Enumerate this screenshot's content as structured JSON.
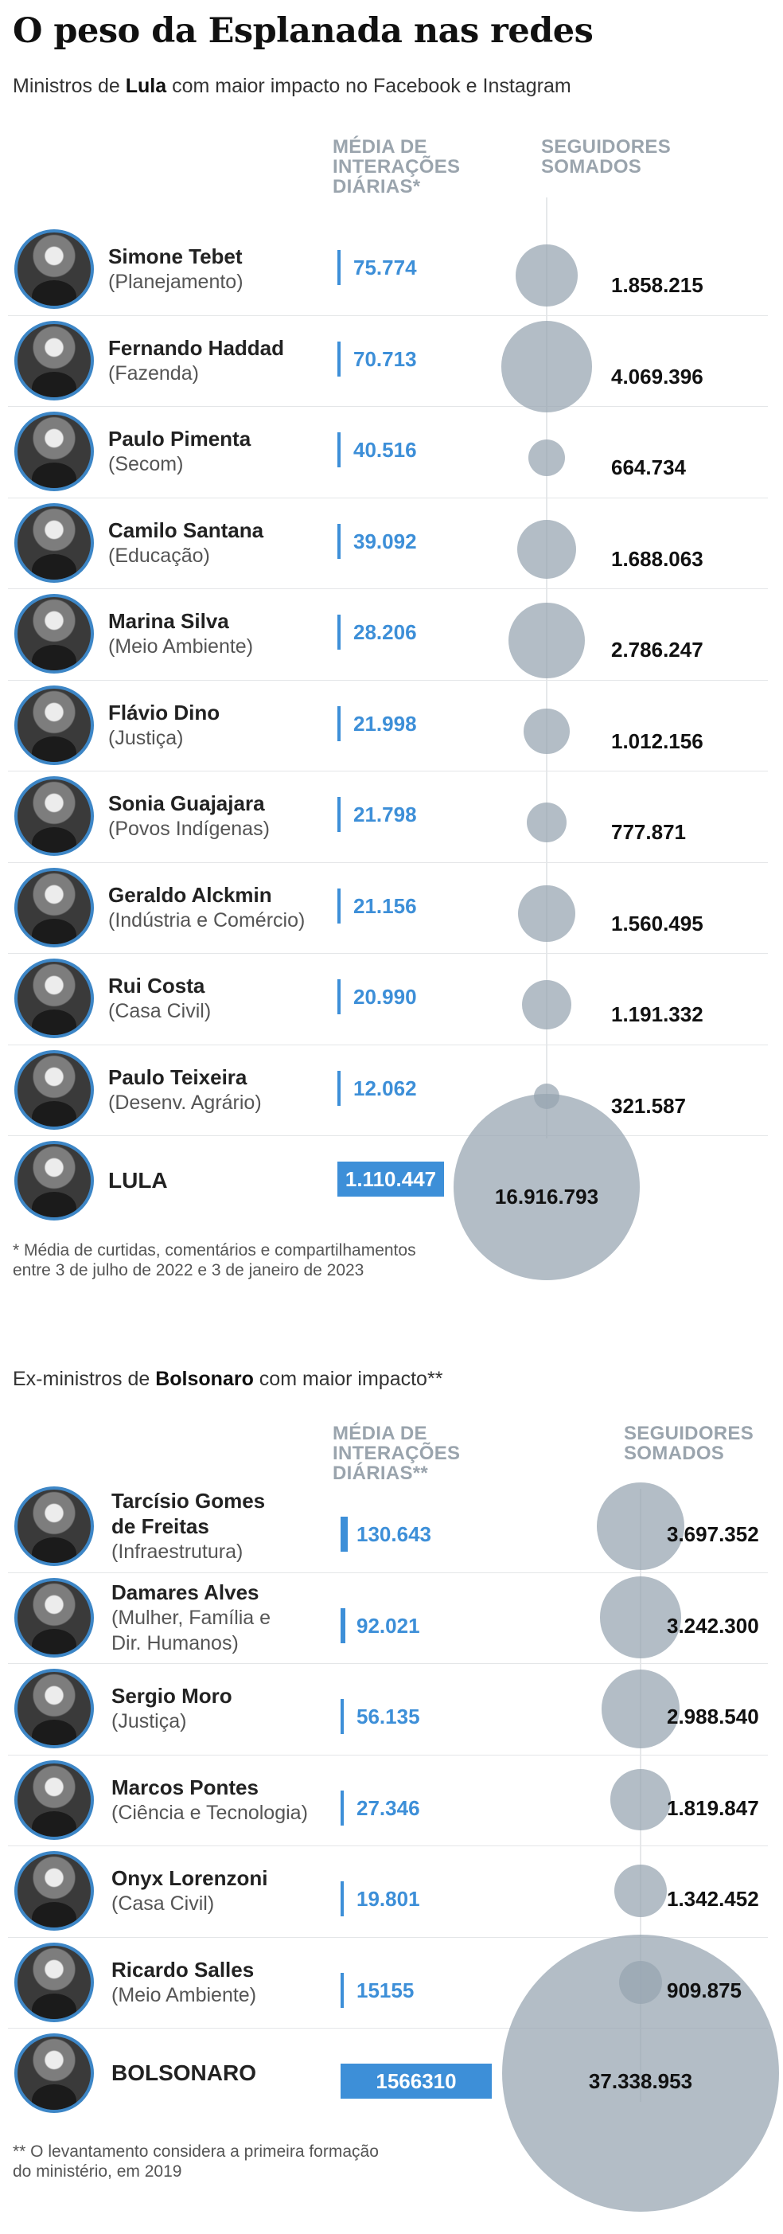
{
  "title": "O peso da Esplanada nas redes",
  "lula_section": {
    "subtitle_prefix": "Ministros de ",
    "subtitle_bold": "Lula",
    "subtitle_suffix": " com maior impacto no Facebook e Instagram",
    "col_interactions": "MÉDIA DE\nINTERAÇÕES\nDIÁRIAS*",
    "col_followers": "SEGUIDORES\nSOMADOS",
    "footnote": "* Média de curtidas, comentários e compartilhamentos\nentre 3 de julho de 2022 e 3 de janeiro de 2023"
  },
  "bolsonaro_section": {
    "subtitle_prefix": "Ex-ministros de ",
    "subtitle_bold": "Bolsonaro",
    "subtitle_suffix": " com maior impacto**",
    "col_interactions": "MÉDIA DE\nINTERAÇÕES\nDIÁRIAS**",
    "col_followers": "SEGUIDORES\nSOMADOS",
    "footnote": "** O levantamento considera a primeira formação\ndo ministério, em 2019"
  },
  "colors": {
    "accent_blue": "#3d8fd8",
    "bubble_gray": "#96a4b0",
    "header_gray": "#9aa4ad"
  },
  "chart_data": [
    {
      "type": "table",
      "title": "O peso da Esplanada nas redes",
      "subtitle": "Ministros de Lula com maior impacto no Facebook e Instagram",
      "columns": [
        "MÉDIA DE INTERAÇÕES DIÁRIAS*",
        "SEGUIDORES SOMADOS"
      ],
      "rows": [
        {
          "name": "Simone Tebet",
          "ministry": "(Planejamento)",
          "interactions": 75774,
          "interactions_label": "75.774",
          "followers": 1858215,
          "followers_label": "1.858.215"
        },
        {
          "name": "Fernando Haddad",
          "ministry": "(Fazenda)",
          "interactions": 70713,
          "interactions_label": "70.713",
          "followers": 4069396,
          "followers_label": "4.069.396"
        },
        {
          "name": "Paulo Pimenta",
          "ministry": "(Secom)",
          "interactions": 40516,
          "interactions_label": "40.516",
          "followers": 664734,
          "followers_label": "664.734"
        },
        {
          "name": "Camilo Santana",
          "ministry": "(Educação)",
          "interactions": 39092,
          "interactions_label": "39.092",
          "followers": 1688063,
          "followers_label": "1.688.063"
        },
        {
          "name": "Marina Silva",
          "ministry": "(Meio Ambiente)",
          "interactions": 28206,
          "interactions_label": "28.206",
          "followers": 2786247,
          "followers_label": "2.786.247"
        },
        {
          "name": "Flávio Dino",
          "ministry": "(Justiça)",
          "interactions": 21998,
          "interactions_label": "21.998",
          "followers": 1012156,
          "followers_label": "1.012.156"
        },
        {
          "name": "Sonia Guajajara",
          "ministry": "(Povos Indígenas)",
          "interactions": 21798,
          "interactions_label": "21.798",
          "followers": 777871,
          "followers_label": "777.871"
        },
        {
          "name": "Geraldo Alckmin",
          "ministry": "(Indústria e Comércio)",
          "interactions": 21156,
          "interactions_label": "21.156",
          "followers": 1560495,
          "followers_label": "1.560.495"
        },
        {
          "name": "Rui Costa",
          "ministry": "(Casa Civil)",
          "interactions": 20990,
          "interactions_label": "20.990",
          "followers": 1191332,
          "followers_label": "1.191.332"
        },
        {
          "name": "Paulo Teixeira",
          "ministry": "(Desenv. Agrário)",
          "interactions": 12062,
          "interactions_label": "12.062",
          "followers": 321587,
          "followers_label": "321.587"
        },
        {
          "name": "LULA",
          "ministry": "",
          "interactions": 1110447,
          "interactions_label": "1.110.447",
          "followers": 16916793,
          "followers_label": "16.916.793",
          "highlight": true
        }
      ]
    },
    {
      "type": "table",
      "subtitle": "Ex-ministros de Bolsonaro com maior impacto**",
      "columns": [
        "MÉDIA DE INTERAÇÕES DIÁRIAS**",
        "SEGUIDORES SOMADOS"
      ],
      "rows": [
        {
          "name": "Tarcísio Gomes\nde Freitas",
          "ministry": "(Infraestrutura)",
          "interactions": 130643,
          "interactions_label": "130.643",
          "followers": 3697352,
          "followers_label": "3.697.352"
        },
        {
          "name": "Damares Alves",
          "ministry": "(Mulher, Família e\nDir. Humanos)",
          "interactions": 92021,
          "interactions_label": "92.021",
          "followers": 3242300,
          "followers_label": "3.242.300"
        },
        {
          "name": "Sergio Moro",
          "ministry": "(Justiça)",
          "interactions": 56135,
          "interactions_label": "56.135",
          "followers": 2988540,
          "followers_label": "2.988.540"
        },
        {
          "name": "Marcos Pontes",
          "ministry": "(Ciência e Tecnologia)",
          "interactions": 27346,
          "interactions_label": "27.346",
          "followers": 1819847,
          "followers_label": "1.819.847"
        },
        {
          "name": "Onyx Lorenzoni",
          "ministry": "(Casa Civil)",
          "interactions": 19801,
          "interactions_label": "19.801",
          "followers": 1342452,
          "followers_label": "1.342.452"
        },
        {
          "name": "Ricardo Salles",
          "ministry": "(Meio Ambiente)",
          "interactions": 15155,
          "interactions_label": "15155",
          "followers": 909875,
          "followers_label": "909.875"
        },
        {
          "name": "BOLSONARO",
          "ministry": "",
          "interactions": 1566310,
          "interactions_label": "1566310",
          "followers": 37338953,
          "followers_label": "37.338.953",
          "highlight": true
        }
      ]
    }
  ]
}
